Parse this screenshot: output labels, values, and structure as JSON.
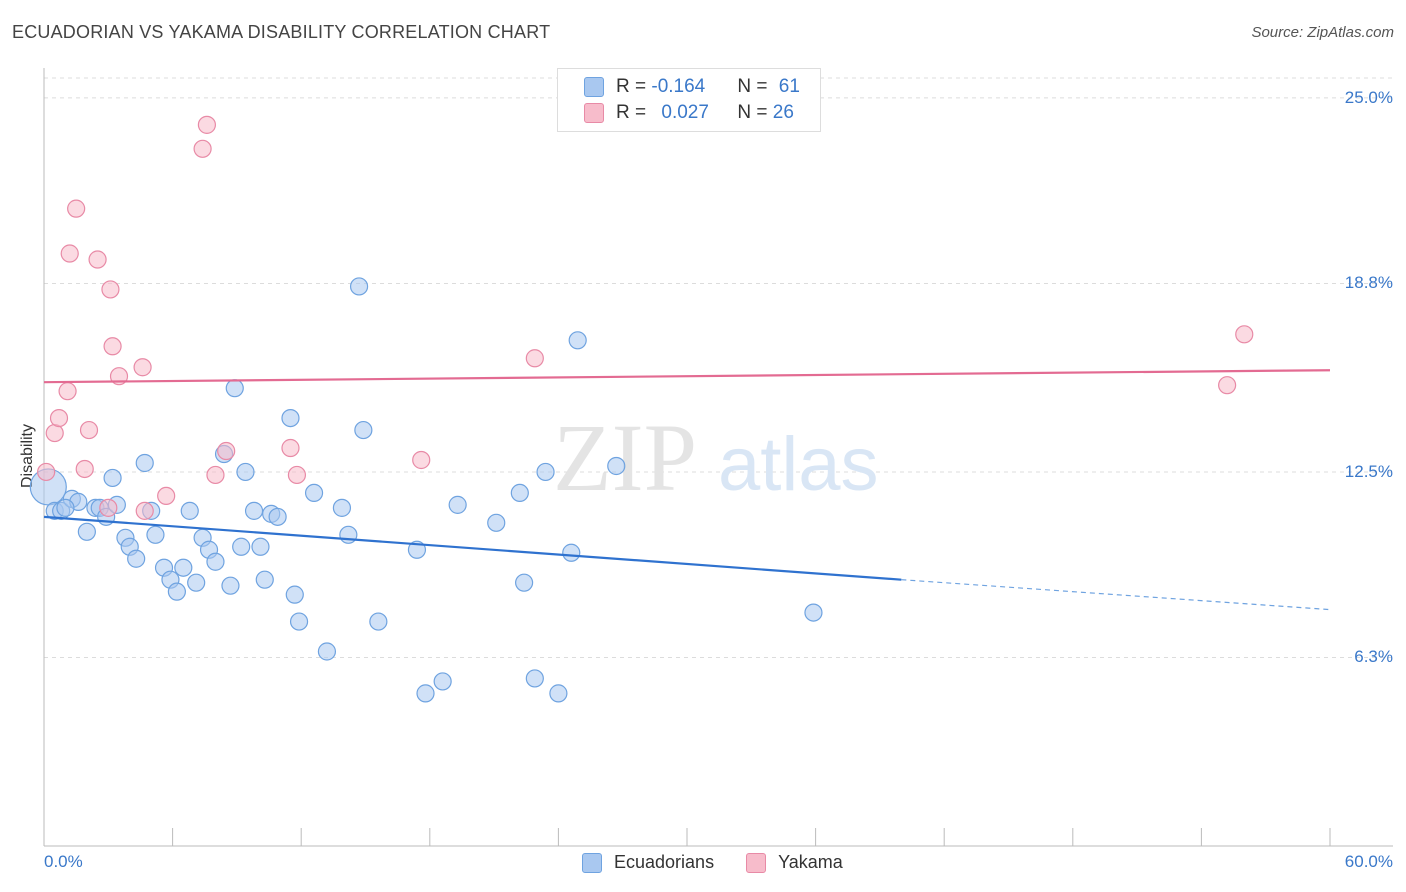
{
  "header": {
    "title": "ECUADORIAN VS YAKAMA DISABILITY CORRELATION CHART",
    "source": "Source: ZipAtlas.com"
  },
  "watermark": {
    "zip": "ZIP",
    "atlas": "atlas"
  },
  "legend": {
    "rows": [
      {
        "r_label": "R = ",
        "r_value": "-0.164",
        "n_label": "N = ",
        "n_value": "61",
        "color": "#a9c8f0"
      },
      {
        "r_label": "R = ",
        "r_value": "0.027",
        "n_label": "N = ",
        "n_value": "26",
        "color": "#f7bccb"
      }
    ]
  },
  "bottom_legend": {
    "series1": "Ecuadorians",
    "series2": "Yakama"
  },
  "chart_data": {
    "type": "scatter",
    "title": "ECUADORIAN VS YAKAMA DISABILITY CORRELATION CHART",
    "xlabel": "",
    "ylabel": "Disability",
    "xlim": [
      0,
      60
    ],
    "ylim": [
      0,
      26
    ],
    "x_tick_labels": [
      "0.0%",
      "60.0%"
    ],
    "y_ticks": [
      6.3,
      12.5,
      18.8,
      25.0
    ],
    "y_tick_labels": [
      "6.3%",
      "12.5%",
      "18.8%",
      "25.0%"
    ],
    "grid": "horizontal dashed",
    "legend_position": "top-center",
    "series": [
      {
        "name": "Ecuadorians",
        "color": "#6fa3e0",
        "fill": "#a9c8f0",
        "trend": {
          "x0": 0,
          "y0": 11.0,
          "x1": 40,
          "y1": 8.9,
          "dashed_to_x": 60,
          "dashed_to_y": 7.9
        },
        "points": [
          [
            0.2,
            12.0
          ],
          [
            0.5,
            11.2
          ],
          [
            0.8,
            11.2
          ],
          [
            1.3,
            11.6
          ],
          [
            1.6,
            11.5
          ],
          [
            2.0,
            10.5
          ],
          [
            2.4,
            11.3
          ],
          [
            2.6,
            11.3
          ],
          [
            2.9,
            11.0
          ],
          [
            3.2,
            12.3
          ],
          [
            3.4,
            11.4
          ],
          [
            3.8,
            10.3
          ],
          [
            4.0,
            10.0
          ],
          [
            4.3,
            9.6
          ],
          [
            4.7,
            12.8
          ],
          [
            5.0,
            11.2
          ],
          [
            5.2,
            10.4
          ],
          [
            5.6,
            9.3
          ],
          [
            5.9,
            8.9
          ],
          [
            6.2,
            8.5
          ],
          [
            6.5,
            9.3
          ],
          [
            6.8,
            11.2
          ],
          [
            7.1,
            8.8
          ],
          [
            7.4,
            10.3
          ],
          [
            7.7,
            9.9
          ],
          [
            8.0,
            9.5
          ],
          [
            8.4,
            13.1
          ],
          [
            8.7,
            8.7
          ],
          [
            8.9,
            15.3
          ],
          [
            9.2,
            10.0
          ],
          [
            9.4,
            12.5
          ],
          [
            9.8,
            11.2
          ],
          [
            10.1,
            10.0
          ],
          [
            10.3,
            8.9
          ],
          [
            10.6,
            11.1
          ],
          [
            10.9,
            11.0
          ],
          [
            11.5,
            14.3
          ],
          [
            11.7,
            8.4
          ],
          [
            11.9,
            7.5
          ],
          [
            12.6,
            11.8
          ],
          [
            13.2,
            6.5
          ],
          [
            13.9,
            11.3
          ],
          [
            14.2,
            10.4
          ],
          [
            14.7,
            18.7
          ],
          [
            14.9,
            13.9
          ],
          [
            15.6,
            7.5
          ],
          [
            17.4,
            9.9
          ],
          [
            17.8,
            5.1
          ],
          [
            18.6,
            5.5
          ],
          [
            19.3,
            11.4
          ],
          [
            21.1,
            10.8
          ],
          [
            22.2,
            11.8
          ],
          [
            22.4,
            8.8
          ],
          [
            22.9,
            5.6
          ],
          [
            23.4,
            12.5
          ],
          [
            24.0,
            5.1
          ],
          [
            24.6,
            9.8
          ],
          [
            24.9,
            16.9
          ],
          [
            26.7,
            12.7
          ],
          [
            35.9,
            7.8
          ],
          [
            1.0,
            11.3
          ]
        ]
      },
      {
        "name": "Yakama",
        "color": "#e88aa6",
        "fill": "#f7bccb",
        "trend": {
          "x0": 0,
          "y0": 15.5,
          "x1": 60,
          "y1": 15.9
        },
        "points": [
          [
            0.1,
            12.5
          ],
          [
            0.5,
            13.8
          ],
          [
            0.7,
            14.3
          ],
          [
            1.1,
            15.2
          ],
          [
            1.2,
            19.8
          ],
          [
            1.5,
            21.3
          ],
          [
            1.9,
            12.6
          ],
          [
            2.1,
            13.9
          ],
          [
            2.5,
            19.6
          ],
          [
            3.1,
            18.6
          ],
          [
            3.2,
            16.7
          ],
          [
            3.5,
            15.7
          ],
          [
            3.0,
            11.3
          ],
          [
            4.6,
            16.0
          ],
          [
            4.7,
            11.2
          ],
          [
            5.7,
            11.7
          ],
          [
            7.4,
            23.3
          ],
          [
            7.6,
            24.1
          ],
          [
            8.0,
            12.4
          ],
          [
            8.5,
            13.2
          ],
          [
            11.5,
            13.3
          ],
          [
            11.8,
            12.4
          ],
          [
            17.6,
            12.9
          ],
          [
            22.9,
            16.3
          ],
          [
            55.2,
            15.4
          ],
          [
            56.0,
            17.1
          ]
        ]
      }
    ]
  }
}
